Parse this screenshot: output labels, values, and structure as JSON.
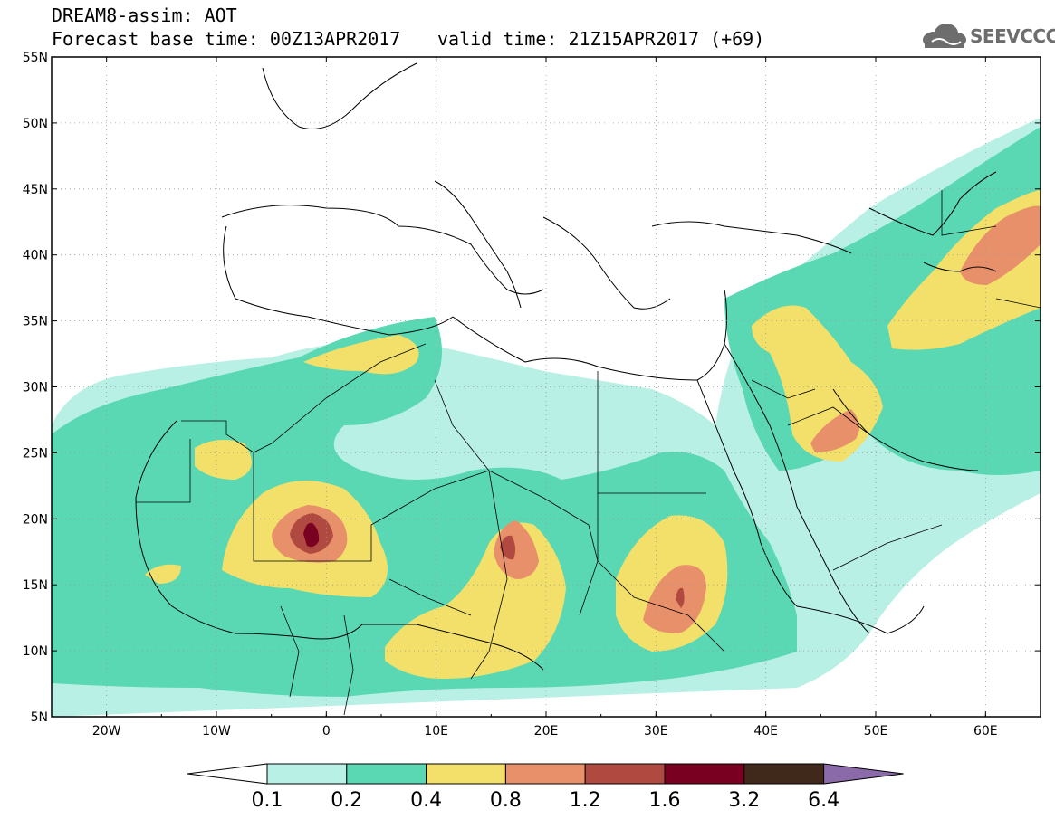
{
  "title_line1": "DREAM8-assim: AOT",
  "title_line2": "Forecast base time: 00Z13APR2017",
  "valid_time": "valid time: 21Z15APR2017 (+69)",
  "logo_text": "SEEVCCC",
  "map": {
    "lon_range": [
      -25,
      65
    ],
    "lat_range": [
      5,
      55
    ],
    "lon_ticks": [
      -20,
      -10,
      0,
      10,
      20,
      30,
      40,
      50,
      60
    ],
    "lon_labels": [
      "20W",
      "10W",
      "0",
      "10E",
      "20E",
      "30E",
      "40E",
      "50E",
      "60E"
    ],
    "lat_ticks": [
      5,
      10,
      15,
      20,
      25,
      30,
      35,
      40,
      45,
      50,
      55
    ],
    "lat_labels": [
      "5N",
      "10N",
      "15N",
      "20N",
      "25N",
      "30N",
      "35N",
      "40N",
      "45N",
      "50N",
      "55N"
    ],
    "grid": "dotted"
  },
  "colorbar": {
    "labels": [
      "0.1",
      "0.2",
      "0.4",
      "0.8",
      "1.2",
      "1.6",
      "3.2",
      "6.4"
    ],
    "colors": [
      "#ffffff",
      "#b9f0e6",
      "#5ad8b4",
      "#f2e06a",
      "#e8906a",
      "#b04a40",
      "#7a0022",
      "#40281a",
      "#8a6aa8"
    ]
  },
  "colors": {
    "level1": "#b9f0e6",
    "level2": "#5ad8b4",
    "level3": "#f2e06a",
    "level4": "#e8906a",
    "level5": "#b04a40",
    "level6": "#7a0022"
  }
}
